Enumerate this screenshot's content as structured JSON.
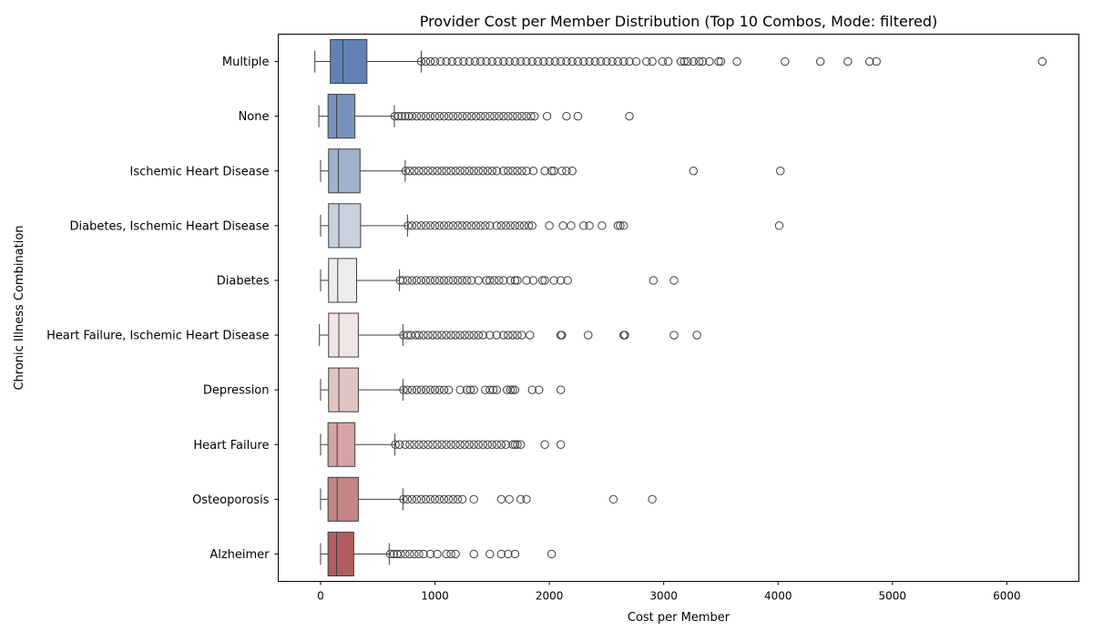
{
  "chart_data": {
    "type": "boxplot",
    "orientation": "horizontal",
    "title": "Provider Cost per Member Distribution (Top 10 Combos, Mode: filtered)",
    "xlabel": "Cost per Member",
    "ylabel": "Chronic Illness Combination",
    "xlim": [
      -370,
      6630
    ],
    "xticks": [
      0,
      1000,
      2000,
      3000,
      4000,
      5000,
      6000
    ],
    "grid": false,
    "legend": "none",
    "categories": [
      {
        "name": "Multiple",
        "color": "#6181b6",
        "min": -50,
        "q1": 85,
        "median": 195,
        "q3": 405,
        "whisker_high": 880,
        "outliers": [
          880,
          920,
          960,
          1000,
          1050,
          1100,
          1150,
          1200,
          1250,
          1300,
          1350,
          1400,
          1450,
          1500,
          1550,
          1600,
          1650,
          1700,
          1750,
          1800,
          1850,
          1900,
          1950,
          2000,
          2050,
          2100,
          2150,
          2200,
          2250,
          2300,
          2350,
          2400,
          2450,
          2500,
          2550,
          2600,
          2650,
          2700,
          2760,
          2850,
          2900,
          2990,
          3040,
          3150,
          3180,
          3210,
          3260,
          3310,
          3340,
          3400,
          3480,
          3500,
          3640,
          4060,
          4370,
          4610,
          4800,
          4860,
          6310
        ]
      },
      {
        "name": "None",
        "color": "#7991bd",
        "min": -15,
        "q1": 65,
        "median": 140,
        "q3": 300,
        "whisker_high": 645,
        "outliers": [
          650,
          680,
          710,
          740,
          770,
          800,
          840,
          880,
          920,
          960,
          1000,
          1040,
          1080,
          1120,
          1160,
          1200,
          1240,
          1280,
          1320,
          1360,
          1400,
          1440,
          1480,
          1520,
          1560,
          1600,
          1640,
          1680,
          1720,
          1760,
          1800,
          1840,
          1870,
          1980,
          2150,
          2250,
          2700
        ]
      },
      {
        "name": "Ischemic Heart Disease",
        "color": "#a1b0cd",
        "min": 0,
        "q1": 70,
        "median": 155,
        "q3": 345,
        "whisker_high": 740,
        "outliers": [
          745,
          780,
          820,
          860,
          900,
          940,
          980,
          1020,
          1060,
          1100,
          1140,
          1180,
          1220,
          1260,
          1300,
          1340,
          1380,
          1420,
          1460,
          1500,
          1540,
          1600,
          1640,
          1680,
          1720,
          1760,
          1800,
          1860,
          1960,
          2020,
          2040,
          2110,
          2150,
          2200,
          3260,
          4020
        ]
      },
      {
        "name": "Diabetes, Ischemic Heart Disease",
        "color": "#cbd0dd",
        "min": 0,
        "q1": 70,
        "median": 160,
        "q3": 350,
        "whisker_high": 760,
        "outliers": [
          765,
          800,
          840,
          880,
          920,
          960,
          1000,
          1040,
          1080,
          1120,
          1160,
          1200,
          1240,
          1280,
          1320,
          1360,
          1400,
          1440,
          1480,
          1540,
          1580,
          1620,
          1660,
          1700,
          1740,
          1780,
          1820,
          1850,
          2000,
          2120,
          2190,
          2300,
          2350,
          2460,
          2600,
          2620,
          2650,
          4010
        ]
      },
      {
        "name": "Diabetes",
        "color": "#ededed",
        "min": 0,
        "q1": 70,
        "median": 150,
        "q3": 315,
        "whisker_high": 690,
        "outliers": [
          695,
          720,
          760,
          800,
          840,
          880,
          920,
          960,
          1000,
          1040,
          1080,
          1120,
          1160,
          1200,
          1240,
          1280,
          1320,
          1380,
          1450,
          1480,
          1520,
          1560,
          1600,
          1660,
          1700,
          1720,
          1800,
          1860,
          1940,
          1960,
          2040,
          2100,
          2160,
          2910,
          3090
        ]
      },
      {
        "name": "Heart Failure, Ischemic Heart Disease",
        "color": "#f0e5e5",
        "min": -10,
        "q1": 70,
        "median": 160,
        "q3": 330,
        "whisker_high": 720,
        "outliers": [
          725,
          760,
          790,
          830,
          860,
          900,
          940,
          980,
          1020,
          1060,
          1100,
          1140,
          1180,
          1220,
          1260,
          1300,
          1340,
          1380,
          1420,
          1480,
          1540,
          1600,
          1640,
          1680,
          1720,
          1760,
          1830,
          2100,
          2110,
          2340,
          2650,
          2660,
          3090,
          3290
        ]
      },
      {
        "name": "Depression",
        "color": "#e1c5c5",
        "min": 0,
        "q1": 70,
        "median": 160,
        "q3": 330,
        "whisker_high": 720,
        "outliers": [
          725,
          760,
          800,
          840,
          880,
          920,
          960,
          1000,
          1040,
          1080,
          1120,
          1220,
          1280,
          1310,
          1340,
          1440,
          1480,
          1510,
          1540,
          1630,
          1660,
          1680,
          1700,
          1850,
          1910,
          2100
        ]
      },
      {
        "name": "Heart Failure",
        "color": "#d6a4a3",
        "min": 0,
        "q1": 65,
        "median": 145,
        "q3": 300,
        "whisker_high": 650,
        "outliers": [
          655,
          690,
          740,
          780,
          820,
          860,
          900,
          940,
          980,
          1020,
          1060,
          1100,
          1140,
          1180,
          1220,
          1260,
          1300,
          1340,
          1380,
          1420,
          1460,
          1500,
          1540,
          1580,
          1620,
          1680,
          1700,
          1720,
          1750,
          1960,
          2100
        ]
      },
      {
        "name": "Osteoporosis",
        "color": "#c38585",
        "min": 0,
        "q1": 65,
        "median": 145,
        "q3": 330,
        "whisker_high": 720,
        "outliers": [
          725,
          760,
          800,
          840,
          880,
          920,
          960,
          1000,
          1040,
          1080,
          1120,
          1160,
          1200,
          1240,
          1340,
          1580,
          1650,
          1750,
          1800,
          2560,
          2900
        ]
      },
      {
        "name": "Alzheimer",
        "color": "#b15d62",
        "min": 0,
        "q1": 65,
        "median": 140,
        "q3": 290,
        "whisker_high": 600,
        "outliers": [
          610,
          640,
          670,
          700,
          740,
          780,
          820,
          860,
          900,
          960,
          1020,
          1100,
          1140,
          1180,
          1340,
          1480,
          1580,
          1640,
          1700,
          2020
        ]
      }
    ]
  }
}
